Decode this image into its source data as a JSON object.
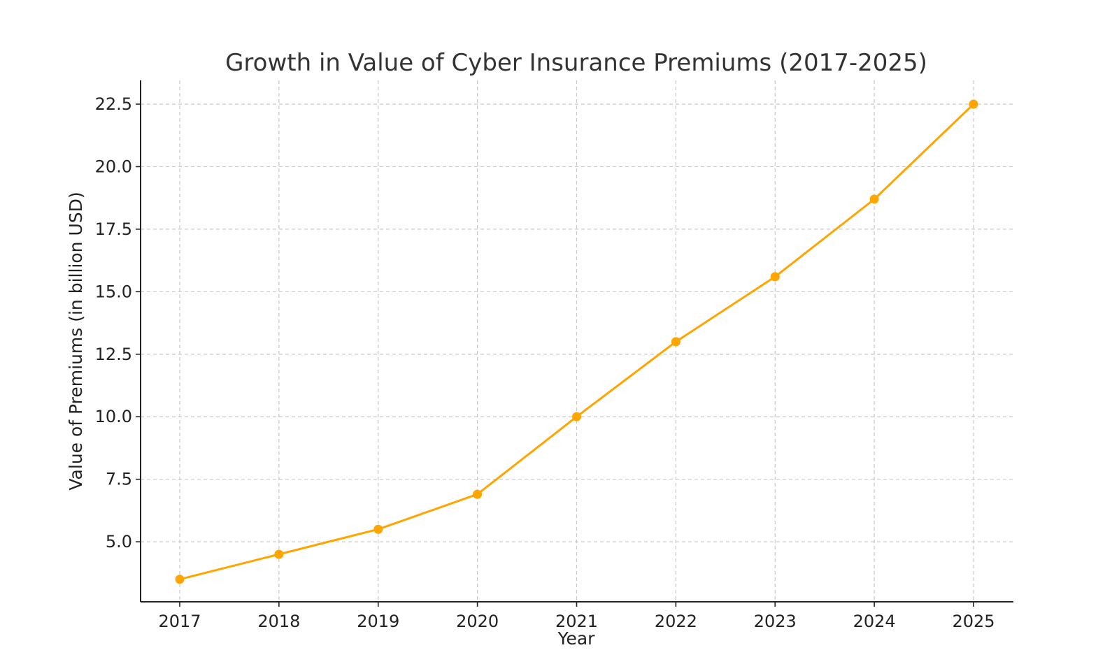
{
  "chart_data": {
    "type": "line",
    "title": "Growth in Value of Cyber Insurance Premiums (2017-2025)",
    "xlabel": "Year",
    "ylabel": "Value of Premiums (in billion USD)",
    "categories": [
      "2017",
      "2018",
      "2019",
      "2020",
      "2021",
      "2022",
      "2023",
      "2024",
      "2025"
    ],
    "series": [
      {
        "name": "Value of Premiums",
        "values": [
          3.5,
          4.5,
          5.5,
          6.9,
          10.0,
          13.0,
          15.6,
          18.7,
          22.5
        ],
        "color": "#FFA500"
      }
    ],
    "yticks": [
      "5.0",
      "7.5",
      "10.0",
      "12.5",
      "15.0",
      "17.5",
      "20.0",
      "22.5"
    ],
    "ylim": [
      2.6,
      23.45
    ],
    "grid": true,
    "legend": "none"
  }
}
